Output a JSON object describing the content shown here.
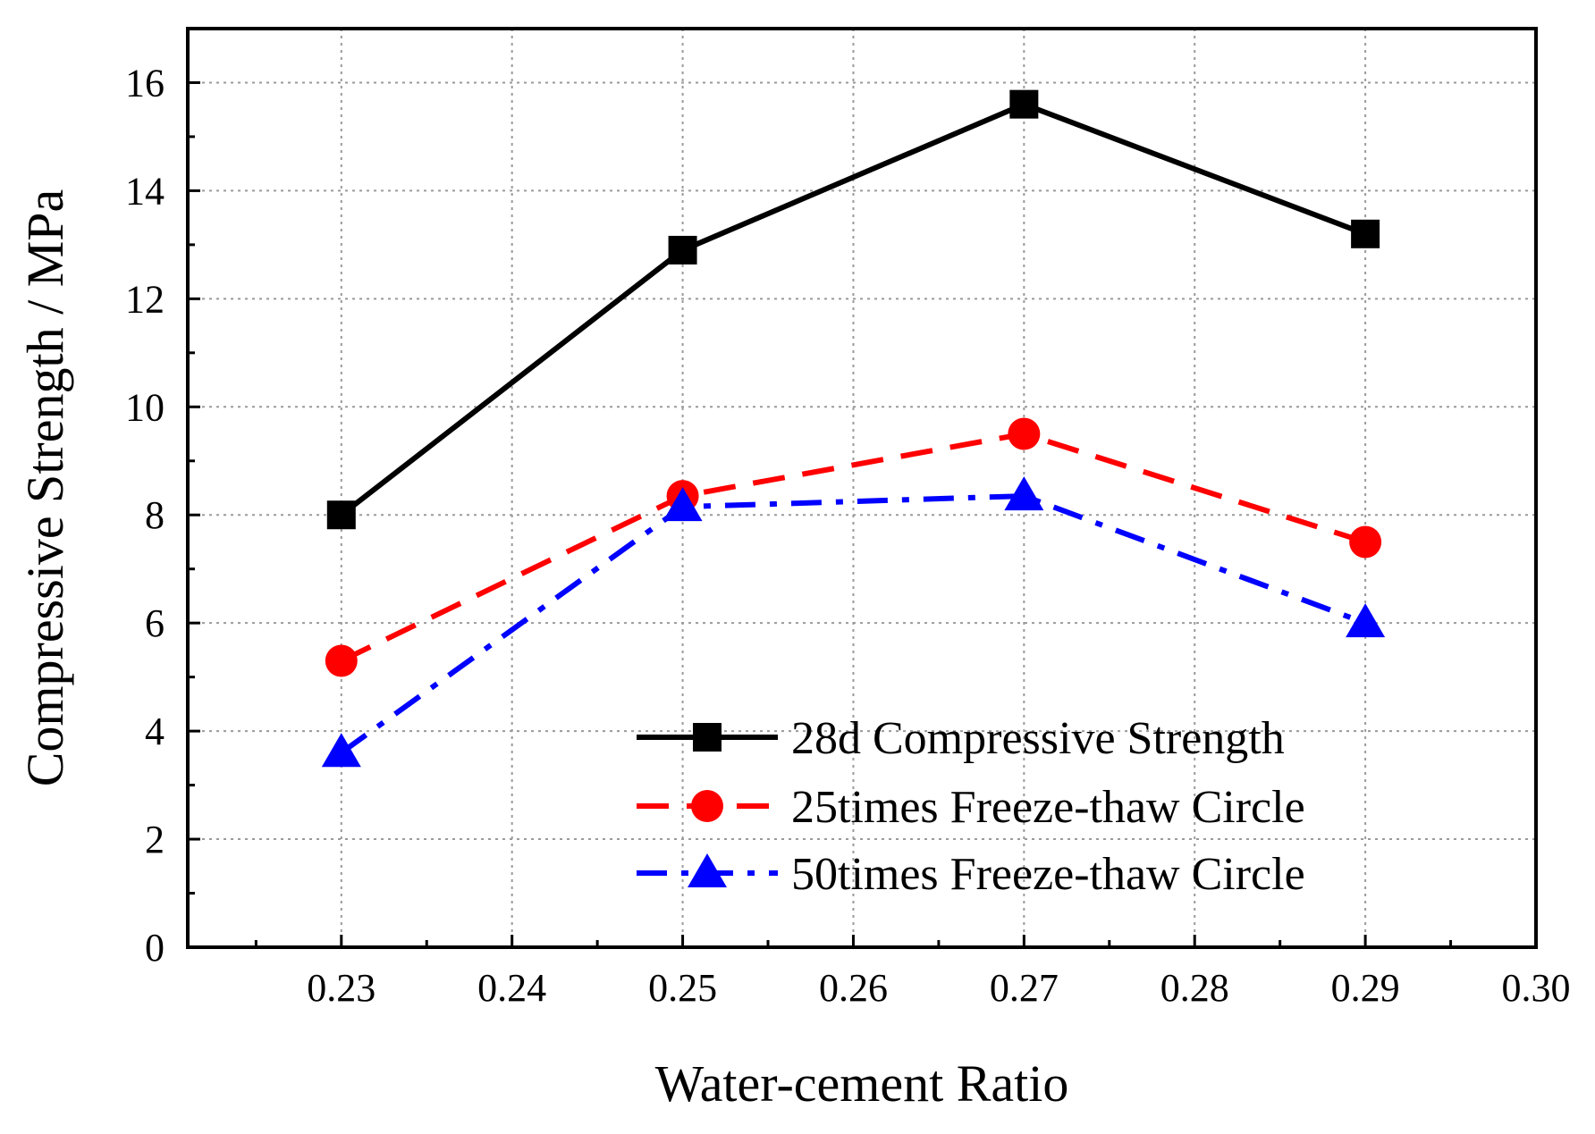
{
  "chart_data": {
    "type": "line",
    "title": "",
    "xlabel": "Water-cement Ratio",
    "ylabel": "Compressive Strength / MPa",
    "xlim": [
      0.221,
      0.3
    ],
    "ylim": [
      0,
      17
    ],
    "x": [
      0.23,
      0.25,
      0.27,
      0.29
    ],
    "xticks": [
      "0.23",
      "0.24",
      "0.25",
      "0.26",
      "0.27",
      "0.28",
      "0.29",
      "0.30"
    ],
    "xtick_values": [
      0.23,
      0.24,
      0.25,
      0.26,
      0.27,
      0.28,
      0.29,
      0.3
    ],
    "yticks": [
      "0",
      "2",
      "4",
      "6",
      "8",
      "10",
      "12",
      "14",
      "16"
    ],
    "ytick_values": [
      0,
      2,
      4,
      6,
      8,
      10,
      12,
      14,
      16
    ],
    "grid": true,
    "legend_position": "bottom-right",
    "series": [
      {
        "name": "28d Compressive Strength",
        "values": [
          8.0,
          12.9,
          15.6,
          13.2
        ],
        "color": "#000000",
        "marker": "square",
        "line": "solid"
      },
      {
        "name": "25times Freeze-thaw Circle",
        "values": [
          5.3,
          8.35,
          9.5,
          7.5
        ],
        "color": "#ff0000",
        "marker": "circle",
        "line": "dash"
      },
      {
        "name": "50times Freeze-thaw Circle",
        "values": [
          3.6,
          8.15,
          8.35,
          6.0
        ],
        "color": "#0000ff",
        "marker": "triangle",
        "line": "dashdot"
      }
    ]
  }
}
